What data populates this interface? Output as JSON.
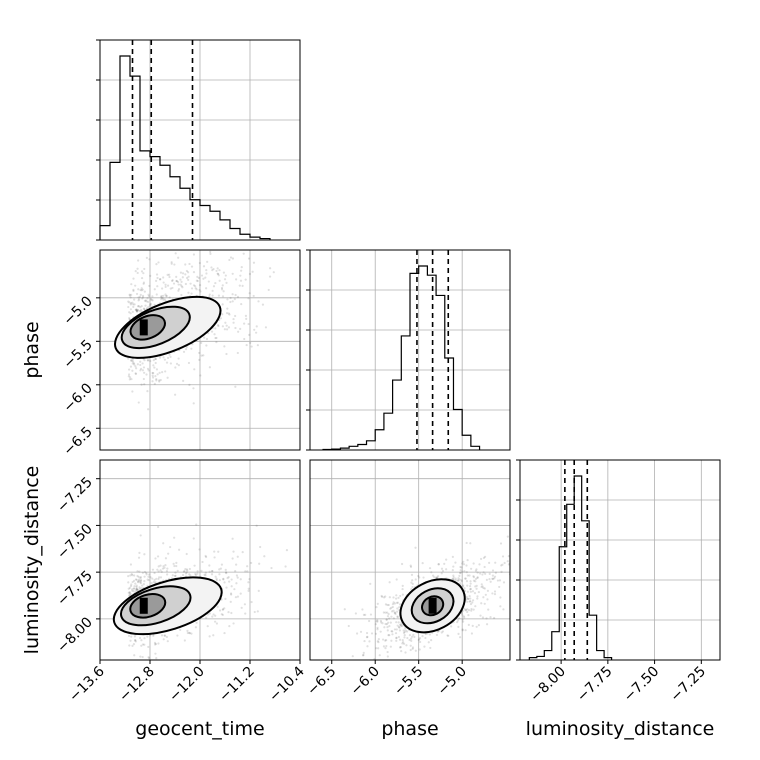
{
  "chart_data": {
    "type": "corner",
    "parameters": [
      "geocent_time",
      "phase",
      "luminosity_distance"
    ],
    "ranges": {
      "geocent_time": [
        -13.6,
        -10.4
      ],
      "phase": [
        -6.75,
        -4.45
      ],
      "luminosity_distance": [
        -8.22,
        -7.15
      ]
    },
    "ticks": {
      "geocent_time": [
        "-13.6",
        "-12.8",
        "-12.0",
        "-11.2",
        "-10.4"
      ],
      "phase": [
        "-6.5",
        "-6.0",
        "-5.5",
        "-5.0"
      ],
      "luminosity_distance": [
        "-8.00",
        "-7.75",
        "-7.50",
        "-7.25"
      ]
    },
    "tick_values": {
      "geocent_time": [
        -13.6,
        -12.8,
        -12.0,
        -11.2,
        -10.4
      ],
      "phase": [
        -6.5,
        -6.0,
        -5.5,
        -5.0
      ],
      "luminosity_distance": [
        -8.0,
        -7.75,
        -7.5,
        -7.25
      ]
    },
    "quantiles": {
      "geocent_time": [
        -13.08,
        -12.78,
        -12.12
      ],
      "phase": [
        -5.52,
        -5.34,
        -5.16
      ],
      "luminosity_distance": [
        -7.98,
        -7.93,
        -7.86
      ]
    },
    "histograms": {
      "geocent_time": {
        "edges": [
          -13.6,
          -13.44,
          -13.28,
          -13.12,
          -12.96,
          -12.8,
          -12.64,
          -12.48,
          -12.32,
          -12.16,
          -12.0,
          -11.84,
          -11.68,
          -11.52,
          -11.36,
          -11.2,
          -11.04,
          -10.88
        ],
        "counts": [
          5,
          27,
          64,
          57,
          31,
          29,
          26,
          22,
          18,
          14,
          12,
          10,
          7,
          4,
          2,
          1,
          0.5
        ]
      },
      "phase": {
        "edges": [
          -6.6,
          -6.5,
          -6.4,
          -6.3,
          -6.2,
          -6.1,
          -6.0,
          -5.9,
          -5.8,
          -5.7,
          -5.6,
          -5.5,
          -5.4,
          -5.3,
          -5.2,
          -5.1,
          -5.0,
          -4.9,
          -4.8
        ],
        "counts": [
          0.3,
          0.5,
          1,
          2,
          3,
          5,
          11,
          20,
          38,
          62,
          96,
          100,
          95,
          84,
          50,
          22,
          8,
          2
        ]
      },
      "luminosity_distance": {
        "edges": [
          -8.17,
          -8.13,
          -8.09,
          -8.05,
          -8.01,
          -7.97,
          -7.93,
          -7.89,
          -7.85,
          -7.81,
          -7.77,
          -7.73
        ],
        "counts": [
          1,
          1.5,
          4,
          12,
          48,
          66,
          78,
          59,
          19,
          4,
          1
        ]
      }
    },
    "correlations": {
      "phase_vs_geocent_time": 0.45,
      "luminosity_distance_vs_geocent_time": 0.35,
      "luminosity_distance_vs_phase": 0.6
    }
  }
}
